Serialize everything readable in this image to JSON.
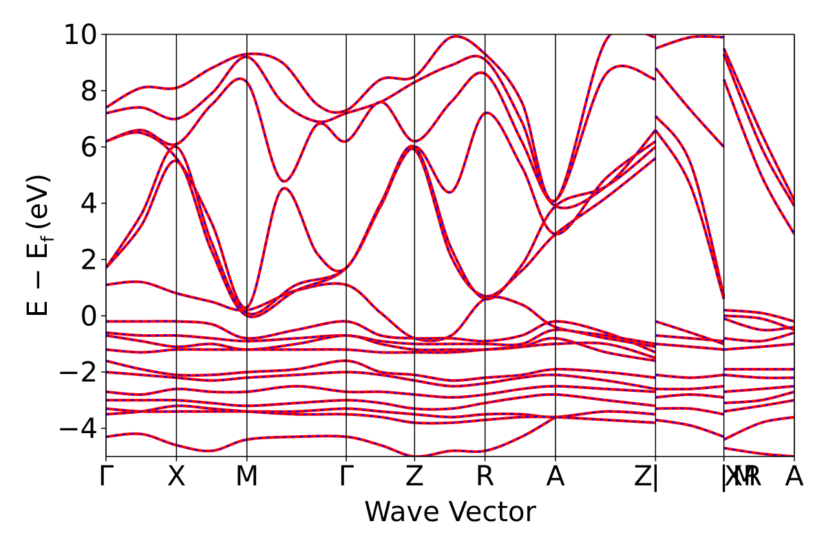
{
  "chart_data": {
    "type": "line",
    "title": "",
    "xlabel": "Wave Vector",
    "ylabel": "E − E",
    "ylabel_sub": "f",
    "ylabel_unit": "(eV)",
    "ylim": [
      -5,
      10
    ],
    "yticks": [
      {
        "value": 10,
        "label": "10"
      },
      {
        "value": 8,
        "label": "8"
      },
      {
        "value": 6,
        "label": "6"
      },
      {
        "value": 4,
        "label": "4"
      },
      {
        "value": 2,
        "label": "2"
      },
      {
        "value": 0,
        "label": "0"
      },
      {
        "value": -2,
        "label": "−2"
      },
      {
        "value": -4,
        "label": "−4"
      }
    ],
    "kpath": [
      "Γ",
      "X",
      "M",
      "Γ",
      "Z",
      "R",
      "A",
      "Z | XR | M",
      "A"
    ],
    "kpoint_labels": [
      {
        "label": "Γ",
        "k": 0
      },
      {
        "label": "X",
        "k": 1
      },
      {
        "label": "M",
        "k": 2
      },
      {
        "label": "Γ",
        "k": 3.41
      },
      {
        "label": "Z",
        "k": 4.38
      },
      {
        "label": "R",
        "k": 5.38
      },
      {
        "label": "A",
        "k": 6.38
      },
      {
        "label": "Z",
        "k": 7.8
      },
      {
        "label": "|",
        "k": 7.8
      },
      {
        "label": "XR",
        "k": 8.77
      },
      {
        "label": "|",
        "k": 8.77
      },
      {
        "label": "M",
        "k": 8.77
      },
      {
        "label": "A",
        "k": 9.77
      }
    ],
    "vlines_k": [
      0,
      1,
      2,
      3.41,
      4.38,
      5.38,
      6.38,
      7.8,
      8.77,
      9.77
    ],
    "xlim": [
      0,
      9.77
    ],
    "grid": false,
    "legend": false,
    "series_style": {
      "color_main": "#ff0000",
      "color_overlay": "#0000ff",
      "overlay_dash": "dashed"
    },
    "series": [
      {
        "x": [
          0,
          0.5,
          1,
          1.5,
          2,
          2.7,
          3.41,
          3.9,
          4.38,
          4.9,
          5.38,
          5.9,
          6.38,
          7.1,
          7.8
        ],
        "y": [
          -0.2,
          -0.2,
          -0.2,
          -0.3,
          -0.8,
          -0.5,
          -0.2,
          -0.7,
          -0.8,
          -0.8,
          -0.9,
          -0.7,
          -0.2,
          -0.6,
          -1.3
        ]
      },
      {
        "x": [
          0,
          0.5,
          1,
          1.5,
          2,
          2.7,
          3.41,
          3.9,
          4.38,
          4.9,
          5.38,
          5.9,
          6.38,
          7.1,
          7.8
        ],
        "y": [
          -0.6,
          -0.7,
          -0.7,
          -0.8,
          -0.9,
          -0.8,
          -0.7,
          -0.9,
          -1.0,
          -1.0,
          -1.0,
          -1.0,
          -0.5,
          -0.8,
          -1.1
        ]
      },
      {
        "x": [
          0,
          0.5,
          1,
          1.5,
          2,
          2.7,
          3.41,
          3.9,
          4.38,
          4.9,
          5.38,
          5.9,
          6.38,
          7.1,
          7.8
        ],
        "y": [
          -0.7,
          -0.9,
          -1.1,
          -1.0,
          -1.2,
          -1.0,
          -0.7,
          -1.0,
          -1.2,
          -1.2,
          -1.2,
          -1.1,
          -0.8,
          -1.3,
          -1.6
        ]
      },
      {
        "x": [
          0,
          0.5,
          1,
          1.5,
          2,
          2.7,
          3.41,
          3.9,
          4.38,
          4.9,
          5.38,
          5.9,
          6.38,
          7.1,
          7.8
        ],
        "y": [
          -1.2,
          -1.3,
          -1.2,
          -1.2,
          -1.2,
          -1.2,
          -1.2,
          -1.3,
          -1.3,
          -1.3,
          -1.2,
          -1.1,
          -1.0,
          -1.0,
          -1.5
        ]
      },
      {
        "x": [
          0,
          0.5,
          1,
          1.5,
          2,
          2.7,
          3.41,
          3.9,
          4.38,
          4.9,
          5.38,
          5.9,
          6.38,
          7.1,
          7.8
        ],
        "y": [
          -1.6,
          -1.9,
          -2.1,
          -2.1,
          -2.0,
          -1.9,
          -1.6,
          -2.0,
          -2.1,
          -2.3,
          -2.2,
          -2.1,
          -1.9,
          -2.0,
          -2.2
        ]
      },
      {
        "x": [
          0,
          0.5,
          1,
          1.5,
          2,
          2.7,
          3.41,
          3.9,
          4.38,
          4.9,
          5.38,
          5.9,
          6.38,
          7.1,
          7.8
        ],
        "y": [
          -2.0,
          -2.1,
          -2.2,
          -2.3,
          -2.2,
          -2.1,
          -2.0,
          -2.1,
          -2.3,
          -2.5,
          -2.4,
          -2.2,
          -2.1,
          -2.3,
          -2.6
        ]
      },
      {
        "x": [
          0,
          0.5,
          1,
          1.5,
          2,
          2.7,
          3.41,
          3.9,
          4.38,
          4.9,
          5.38,
          5.9,
          6.38,
          7.1,
          7.8
        ],
        "y": [
          -2.7,
          -2.8,
          -2.6,
          -2.7,
          -2.7,
          -2.5,
          -2.7,
          -2.7,
          -2.8,
          -2.9,
          -2.8,
          -2.6,
          -2.5,
          -2.6,
          -2.7
        ]
      },
      {
        "x": [
          0,
          0.5,
          1,
          1.5,
          2,
          2.7,
          3.41,
          3.9,
          4.38,
          4.9,
          5.38,
          5.9,
          6.38,
          7.1,
          7.8
        ],
        "y": [
          -3.0,
          -3.0,
          -3.0,
          -3.1,
          -3.2,
          -3.1,
          -3.0,
          -3.1,
          -3.3,
          -3.3,
          -3.1,
          -2.9,
          -2.8,
          -3.0,
          -3.2
        ]
      },
      {
        "x": [
          0,
          0.5,
          1,
          1.5,
          2,
          2.7,
          3.41,
          3.9,
          4.38,
          4.9,
          5.38,
          5.9,
          6.38,
          7.1,
          7.8
        ],
        "y": [
          -3.3,
          -3.4,
          -3.4,
          -3.4,
          -3.4,
          -3.4,
          -3.3,
          -3.4,
          -3.5,
          -3.6,
          -3.5,
          -3.5,
          -3.6,
          -3.4,
          -3.5
        ]
      },
      {
        "x": [
          0,
          0.5,
          1,
          1.5,
          2,
          2.7,
          3.41,
          3.9,
          4.38,
          4.9,
          5.38,
          5.9,
          6.38,
          7.1,
          7.8
        ],
        "y": [
          -3.5,
          -3.4,
          -3.2,
          -3.3,
          -3.4,
          -3.5,
          -3.5,
          -3.6,
          -3.8,
          -3.8,
          -3.7,
          -3.6,
          -3.6,
          -3.7,
          -3.8
        ]
      },
      {
        "x": [
          0,
          0.5,
          1,
          1.5,
          2,
          2.7,
          3.41,
          3.9,
          4.38,
          4.9,
          5.38,
          5.9,
          6.38
        ],
        "y": [
          -4.3,
          -4.2,
          -4.6,
          -4.8,
          -4.4,
          -4.3,
          -4.3,
          -4.6,
          -5.0,
          -4.8,
          -4.8,
          -4.3,
          -3.6
        ]
      },
      {
        "x": [
          0,
          0.5,
          1,
          1.5,
          2,
          2.7,
          3.41,
          3.9,
          4.38,
          4.9,
          5.38,
          5.9,
          6.38,
          7.1,
          7.8
        ],
        "y": [
          1.1,
          1.2,
          0.8,
          0.5,
          0.2,
          0.9,
          1.1,
          0.1,
          -0.8,
          -0.7,
          0.6,
          0.4,
          -0.4,
          -0.7,
          -1.0
        ]
      },
      {
        "x": [
          0,
          0.5,
          1,
          1.5,
          2,
          2.7,
          3.41,
          3.9,
          4.38,
          4.9,
          5.38,
          5.9,
          6.38,
          7.1,
          7.8
        ],
        "y": [
          1.7,
          3.2,
          5.5,
          2.3,
          0.0,
          0.9,
          1.7,
          3.9,
          5.9,
          2.1,
          0.7,
          1.6,
          2.9,
          4.2,
          5.6
        ]
      },
      {
        "x": [
          0,
          0.5,
          1,
          1.5,
          2,
          2.7,
          3.41,
          3.9,
          4.38,
          4.9,
          5.38,
          5.9,
          6.38,
          7.1,
          7.8
        ],
        "y": [
          1.7,
          3.6,
          6.0,
          2.6,
          0.1,
          1.1,
          1.7,
          4.0,
          6.0,
          2.4,
          0.6,
          1.8,
          3.9,
          4.6,
          6.0
        ]
      },
      {
        "x": [
          0,
          0.5,
          1,
          1.5,
          2,
          2.5,
          3.0,
          3.41,
          3.9,
          4.38,
          4.9,
          5.38,
          5.9,
          6.38,
          7.1,
          7.8
        ],
        "y": [
          6.2,
          6.5,
          5.6,
          3.3,
          0.3,
          4.5,
          2.2,
          1.7,
          4.0,
          6.0,
          4.4,
          7.2,
          5.3,
          2.9,
          4.9,
          6.2
        ]
      },
      {
        "x": [
          0,
          0.5,
          1,
          1.5,
          2,
          2.5,
          3.0,
          3.41,
          3.9,
          4.38,
          4.9,
          5.38,
          5.9,
          6.38,
          7.1,
          7.8
        ],
        "y": [
          6.2,
          6.6,
          6.1,
          7.5,
          8.3,
          4.8,
          6.8,
          6.2,
          7.6,
          6.2,
          7.6,
          8.6,
          6.2,
          3.9,
          4.6,
          6.6
        ]
      },
      {
        "x": [
          0,
          0.5,
          1,
          1.5,
          2,
          2.5,
          3.0,
          3.41,
          3.9,
          4.38,
          4.9,
          5.38,
          5.9,
          6.38,
          7.1,
          7.8
        ],
        "y": [
          7.2,
          7.4,
          7.0,
          7.9,
          9.2,
          7.6,
          6.9,
          7.2,
          7.6,
          8.3,
          8.9,
          9.1,
          6.9,
          4.1,
          8.6,
          8.4
        ]
      },
      {
        "x": [
          0,
          0.5,
          1,
          1.5,
          2,
          2.5,
          3.0,
          3.41,
          3.9,
          4.38,
          4.9,
          5.38,
          5.9,
          6.38,
          7.1,
          7.8
        ],
        "y": [
          7.4,
          8.1,
          8.1,
          8.8,
          9.3,
          9.0,
          7.5,
          7.3,
          8.4,
          8.5,
          9.9,
          9.3,
          7.6,
          4.1,
          9.8,
          9.9
        ]
      },
      {
        "x": [
          7.8,
          8.3,
          8.77
        ],
        "y": [
          9.5,
          9.9,
          9.9
        ]
      },
      {
        "x": [
          7.8,
          8.3,
          8.77
        ],
        "y": [
          8.8,
          7.3,
          6.0
        ]
      },
      {
        "x": [
          7.8,
          8.3,
          8.77
        ],
        "y": [
          7.1,
          5.4,
          0.7
        ]
      },
      {
        "x": [
          7.8,
          8.3,
          8.77
        ],
        "y": [
          6.6,
          4.6,
          0.6
        ]
      },
      {
        "x": [
          7.8,
          8.3,
          8.77
        ],
        "y": [
          -0.2,
          -0.6,
          -1.0
        ]
      },
      {
        "x": [
          7.8,
          8.3,
          8.77
        ],
        "y": [
          -0.7,
          -0.8,
          -0.9
        ]
      },
      {
        "x": [
          7.8,
          8.3,
          8.77
        ],
        "y": [
          -1.0,
          -1.1,
          -1.2
        ]
      },
      {
        "x": [
          7.8,
          8.3,
          8.77
        ],
        "y": [
          -2.1,
          -2.2,
          -2.1
        ]
      },
      {
        "x": [
          7.8,
          8.3,
          8.77
        ],
        "y": [
          -2.6,
          -2.6,
          -2.5
        ]
      },
      {
        "x": [
          7.8,
          8.3,
          8.77
        ],
        "y": [
          -2.9,
          -2.8,
          -2.9
        ]
      },
      {
        "x": [
          7.8,
          8.3,
          8.77
        ],
        "y": [
          -3.3,
          -3.3,
          -3.5
        ]
      },
      {
        "x": [
          7.8,
          8.3,
          8.77
        ],
        "y": [
          -3.7,
          -3.9,
          -4.3
        ]
      },
      {
        "x": [
          8.77,
          9.3,
          9.77
        ],
        "y": [
          9.5,
          6.5,
          4.1
        ]
      },
      {
        "x": [
          8.77,
          9.3,
          9.77
        ],
        "y": [
          9.3,
          6.0,
          3.9
        ]
      },
      {
        "x": [
          8.77,
          9.3,
          9.77
        ],
        "y": [
          8.4,
          5.0,
          2.9
        ]
      },
      {
        "x": [
          8.77,
          9.3,
          9.77
        ],
        "y": [
          0.2,
          0.1,
          -0.2
        ]
      },
      {
        "x": [
          8.77,
          9.3,
          9.77
        ],
        "y": [
          0.0,
          -0.1,
          -0.5
        ]
      },
      {
        "x": [
          8.77,
          9.3,
          9.77
        ],
        "y": [
          -0.1,
          -0.5,
          -0.4
        ]
      },
      {
        "x": [
          8.77,
          9.3,
          9.77
        ],
        "y": [
          -0.8,
          -0.9,
          -0.6
        ]
      },
      {
        "x": [
          8.77,
          9.3,
          9.77
        ],
        "y": [
          -1.2,
          -1.1,
          -1.0
        ]
      },
      {
        "x": [
          8.77,
          9.3,
          9.77
        ],
        "y": [
          -1.9,
          -1.9,
          -1.9
        ]
      },
      {
        "x": [
          8.77,
          9.3,
          9.77
        ],
        "y": [
          -2.1,
          -2.2,
          -2.2
        ]
      },
      {
        "x": [
          8.77,
          9.3,
          9.77
        ],
        "y": [
          -2.7,
          -2.6,
          -2.5
        ]
      },
      {
        "x": [
          8.77,
          9.3,
          9.77
        ],
        "y": [
          -3.1,
          -3.0,
          -2.7
        ]
      },
      {
        "x": [
          8.77,
          9.3,
          9.77
        ],
        "y": [
          -3.4,
          -3.2,
          -3.0
        ]
      },
      {
        "x": [
          8.77,
          9.3,
          9.77
        ],
        "y": [
          -4.4,
          -3.8,
          -3.6
        ]
      },
      {
        "x": [
          8.77,
          9.3,
          9.77
        ],
        "y": [
          -4.7,
          -4.9,
          -5.0
        ]
      }
    ]
  }
}
